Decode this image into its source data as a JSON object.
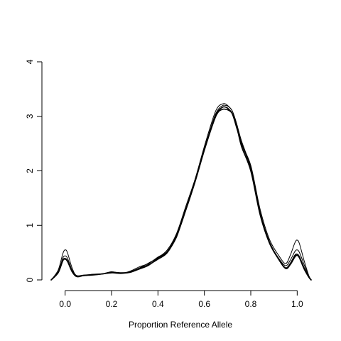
{
  "chart_data": {
    "type": "line",
    "title": "",
    "xlabel": "Proportion Reference Allele",
    "ylabel": "",
    "xlim": [
      -0.1,
      1.1
    ],
    "ylim": [
      0,
      4
    ],
    "xticks": [
      0.0,
      0.2,
      0.4,
      0.6,
      0.8,
      1.0
    ],
    "xtick_labels": [
      "0.0",
      "0.2",
      "0.4",
      "0.6",
      "0.8",
      "1.0"
    ],
    "yticks": [
      0,
      1,
      2,
      3,
      4
    ],
    "ytick_labels": [
      "0",
      "1",
      "2",
      "3",
      "4"
    ],
    "grid": false,
    "legend": "none",
    "colors": {
      "line": "#000000",
      "background": "#ffffff"
    },
    "series": [
      {
        "x": [
          -0.06,
          -0.03,
          -0.01,
          0.0,
          0.01,
          0.03,
          0.05,
          0.08,
          0.12,
          0.16,
          0.2,
          0.24,
          0.28,
          0.32,
          0.36,
          0.4,
          0.44,
          0.48,
          0.52,
          0.56,
          0.6,
          0.64,
          0.66,
          0.68,
          0.69,
          0.7,
          0.72,
          0.74,
          0.76,
          0.8,
          0.84,
          0.88,
          0.92,
          0.95,
          0.97,
          0.99,
          1.0,
          1.01,
          1.03,
          1.05,
          1.06
        ],
        "y": [
          0.0,
          0.18,
          0.48,
          0.55,
          0.5,
          0.22,
          0.07,
          0.08,
          0.1,
          0.11,
          0.15,
          0.12,
          0.16,
          0.24,
          0.3,
          0.42,
          0.52,
          0.78,
          1.3,
          1.8,
          2.4,
          2.95,
          3.13,
          3.2,
          3.2,
          3.19,
          3.1,
          2.85,
          2.5,
          2.1,
          1.3,
          0.75,
          0.45,
          0.3,
          0.45,
          0.68,
          0.73,
          0.66,
          0.35,
          0.08,
          0.0
        ]
      },
      {
        "x": [
          -0.06,
          -0.03,
          -0.01,
          0.0,
          0.01,
          0.03,
          0.05,
          0.08,
          0.12,
          0.16,
          0.2,
          0.24,
          0.28,
          0.32,
          0.36,
          0.4,
          0.44,
          0.48,
          0.52,
          0.56,
          0.6,
          0.64,
          0.66,
          0.68,
          0.69,
          0.7,
          0.72,
          0.74,
          0.76,
          0.8,
          0.84,
          0.88,
          0.92,
          0.95,
          0.97,
          0.99,
          1.0,
          1.01,
          1.03,
          1.05,
          1.06
        ],
        "y": [
          0.0,
          0.15,
          0.4,
          0.44,
          0.4,
          0.18,
          0.08,
          0.09,
          0.1,
          0.11,
          0.14,
          0.13,
          0.15,
          0.22,
          0.31,
          0.41,
          0.55,
          0.85,
          1.35,
          1.85,
          2.45,
          3.0,
          3.18,
          3.23,
          3.23,
          3.2,
          3.1,
          2.85,
          2.55,
          2.05,
          1.25,
          0.7,
          0.4,
          0.26,
          0.36,
          0.52,
          0.55,
          0.5,
          0.28,
          0.07,
          0.0
        ]
      },
      {
        "x": [
          -0.06,
          -0.03,
          -0.01,
          0.0,
          0.01,
          0.03,
          0.05,
          0.08,
          0.12,
          0.16,
          0.2,
          0.24,
          0.28,
          0.32,
          0.36,
          0.4,
          0.44,
          0.48,
          0.52,
          0.56,
          0.6,
          0.64,
          0.66,
          0.68,
          0.69,
          0.7,
          0.72,
          0.74,
          0.76,
          0.8,
          0.84,
          0.88,
          0.92,
          0.95,
          0.97,
          0.99,
          1.0,
          1.01,
          1.03,
          1.05,
          1.06
        ],
        "y": [
          0.0,
          0.14,
          0.36,
          0.39,
          0.35,
          0.15,
          0.06,
          0.08,
          0.09,
          0.11,
          0.14,
          0.13,
          0.14,
          0.21,
          0.28,
          0.38,
          0.5,
          0.8,
          1.28,
          1.8,
          2.38,
          2.9,
          3.08,
          3.13,
          3.13,
          3.12,
          3.05,
          2.8,
          2.45,
          2.0,
          1.2,
          0.68,
          0.38,
          0.22,
          0.3,
          0.45,
          0.47,
          0.42,
          0.22,
          0.06,
          0.0
        ]
      },
      {
        "x": [
          -0.06,
          -0.03,
          -0.01,
          0.0,
          0.01,
          0.03,
          0.05,
          0.08,
          0.12,
          0.16,
          0.2,
          0.24,
          0.28,
          0.32,
          0.36,
          0.4,
          0.44,
          0.48,
          0.52,
          0.56,
          0.6,
          0.64,
          0.66,
          0.68,
          0.69,
          0.7,
          0.72,
          0.74,
          0.76,
          0.8,
          0.84,
          0.88,
          0.92,
          0.95,
          0.97,
          0.99,
          1.0,
          1.01,
          1.03,
          1.05,
          1.06
        ],
        "y": [
          0.0,
          0.13,
          0.35,
          0.38,
          0.34,
          0.16,
          0.07,
          0.08,
          0.1,
          0.11,
          0.13,
          0.12,
          0.14,
          0.2,
          0.27,
          0.4,
          0.52,
          0.82,
          1.3,
          1.82,
          2.4,
          2.92,
          3.1,
          3.17,
          3.17,
          3.15,
          3.05,
          2.78,
          2.5,
          2.05,
          1.22,
          0.7,
          0.38,
          0.21,
          0.28,
          0.42,
          0.45,
          0.4,
          0.2,
          0.05,
          0.0
        ]
      }
    ]
  }
}
